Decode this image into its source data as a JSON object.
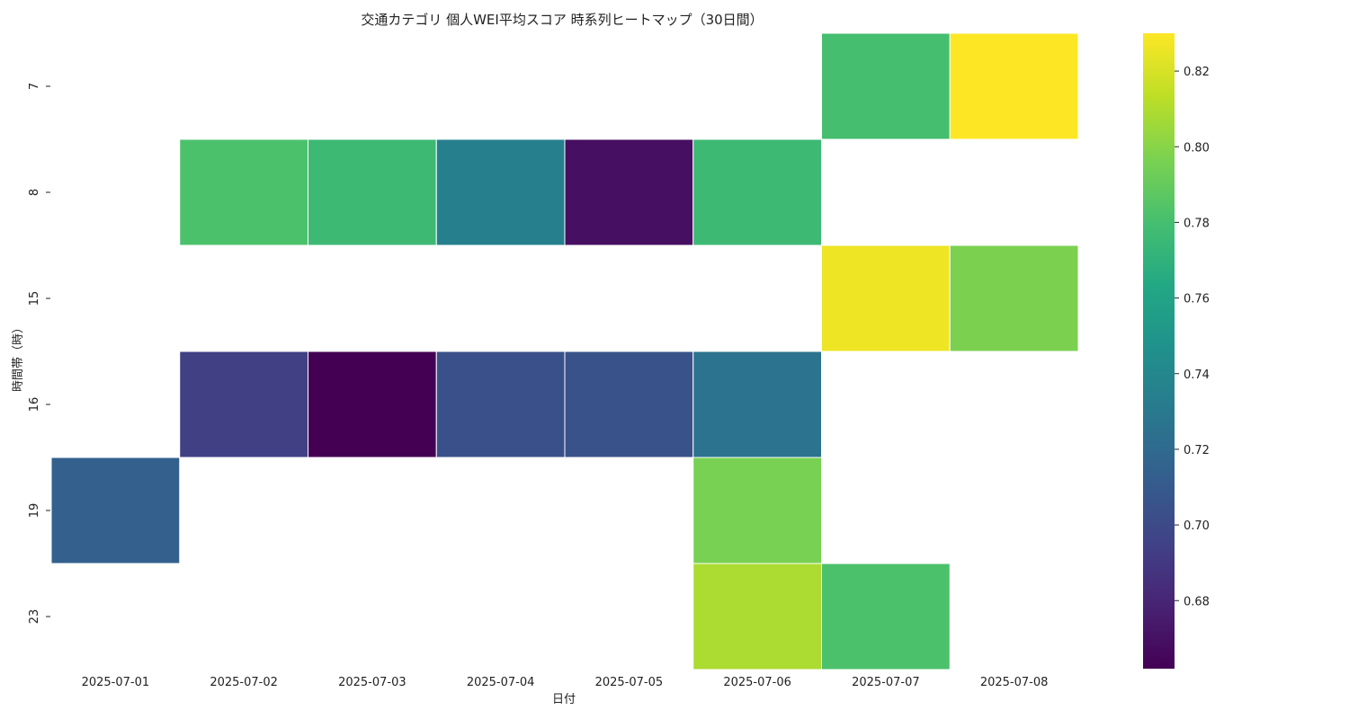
{
  "chart_data": {
    "type": "heatmap",
    "title": "交通カテゴリ 個人WEI平均スコア 時系列ヒートマップ（30日間）",
    "xlabel": "日付",
    "ylabel": "時間帯（時）",
    "x_categories": [
      "2025-07-01",
      "2025-07-02",
      "2025-07-03",
      "2025-07-04",
      "2025-07-05",
      "2025-07-06",
      "2025-07-07",
      "2025-07-08"
    ],
    "y_categories": [
      "7",
      "8",
      "15",
      "16",
      "19",
      "23"
    ],
    "values": [
      [
        null,
        null,
        null,
        null,
        null,
        null,
        0.78,
        0.83
      ],
      [
        null,
        0.782,
        0.776,
        0.734,
        0.669,
        0.776,
        null,
        null
      ],
      [
        null,
        null,
        null,
        null,
        null,
        null,
        0.826,
        0.797
      ],
      [
        null,
        0.694,
        0.662,
        0.704,
        0.705,
        0.726,
        null,
        null
      ],
      [
        0.714,
        null,
        null,
        null,
        null,
        0.796,
        null,
        null
      ],
      [
        null,
        null,
        null,
        null,
        null,
        0.809,
        0.782,
        null
      ]
    ],
    "colormap": "viridis",
    "vmin": 0.662,
    "vmax": 0.83,
    "colorbar_ticks": [
      "0.68",
      "0.70",
      "0.72",
      "0.74",
      "0.76",
      "0.78",
      "0.80",
      "0.82"
    ],
    "grid": false
  }
}
